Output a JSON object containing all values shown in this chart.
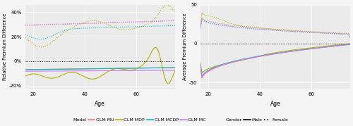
{
  "age_min": 17,
  "age_max": 75,
  "left_ylim": [
    -0.225,
    0.46
  ],
  "right_ylim": [
    -58,
    48
  ],
  "left_yticks": [
    -0.2,
    0.0,
    0.2,
    0.4
  ],
  "left_yticklabels": [
    "-20%",
    "0%",
    "20%",
    "40%"
  ],
  "right_yticks": [
    -50,
    0,
    50
  ],
  "right_yticklabels": [
    "-50",
    "0",
    "50"
  ],
  "left_ylabel": "Relative Premium Difference",
  "right_ylabel": "Average Premium Difference",
  "xlabel": "Age",
  "colors": {
    "GLM MU": "#f8766d",
    "GLM MDP": "#b3b300",
    "GLM MCDP": "#00bfc4",
    "GLM MC": "#c77cff"
  },
  "bg_color": "#ebebeb",
  "grid_color": "#ffffff"
}
